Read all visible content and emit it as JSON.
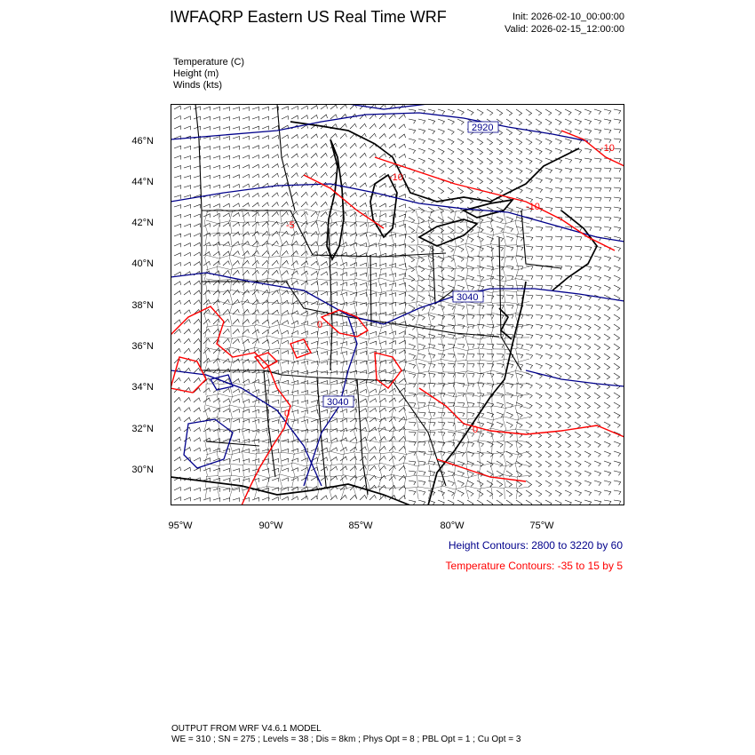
{
  "header": {
    "title": "IWFAQRP Eastern US Real Time WRF",
    "init": "Init: 2026-02-10_00:00:00",
    "valid": "Valid: 2026-02-15_12:00:00"
  },
  "fields": [
    {
      "name": "Temperature",
      "unit": "(C)"
    },
    {
      "name": "Height",
      "unit": "(m)"
    },
    {
      "name": "Winds",
      "unit": "(kts)"
    }
  ],
  "fields_text": [
    "Temperature   (C)",
    "Height   (m)",
    "Winds   (kts)"
  ],
  "axes": {
    "lat_labels": [
      "46°N",
      "44°N",
      "42°N",
      "40°N",
      "38°N",
      "36°N",
      "34°N",
      "32°N",
      "30°N"
    ],
    "lon_labels": [
      "95°W",
      "90°W",
      "85°W",
      "80°W",
      "75°W"
    ]
  },
  "contour_labels": {
    "height": [
      "2920",
      "3040",
      "3040"
    ],
    "temperature": [
      "-10",
      "-10",
      "-10",
      "-5",
      "0",
      "0",
      "0"
    ]
  },
  "legend": {
    "height": "Height Contours: 2800 to 3220 by 60",
    "temperature": "Temperature Contours: -35 to 15 by 5",
    "height_color": "#00008b",
    "temperature_color": "#ff0000"
  },
  "footer": {
    "line1": "OUTPUT FROM WRF V4.6.1 MODEL",
    "line2": "WE = 310 ; SN = 275 ; Levels = 38 ; Dis = 8km ; Phys Opt = 8 ; PBL Opt = 1 ; Cu Opt = 3"
  }
}
